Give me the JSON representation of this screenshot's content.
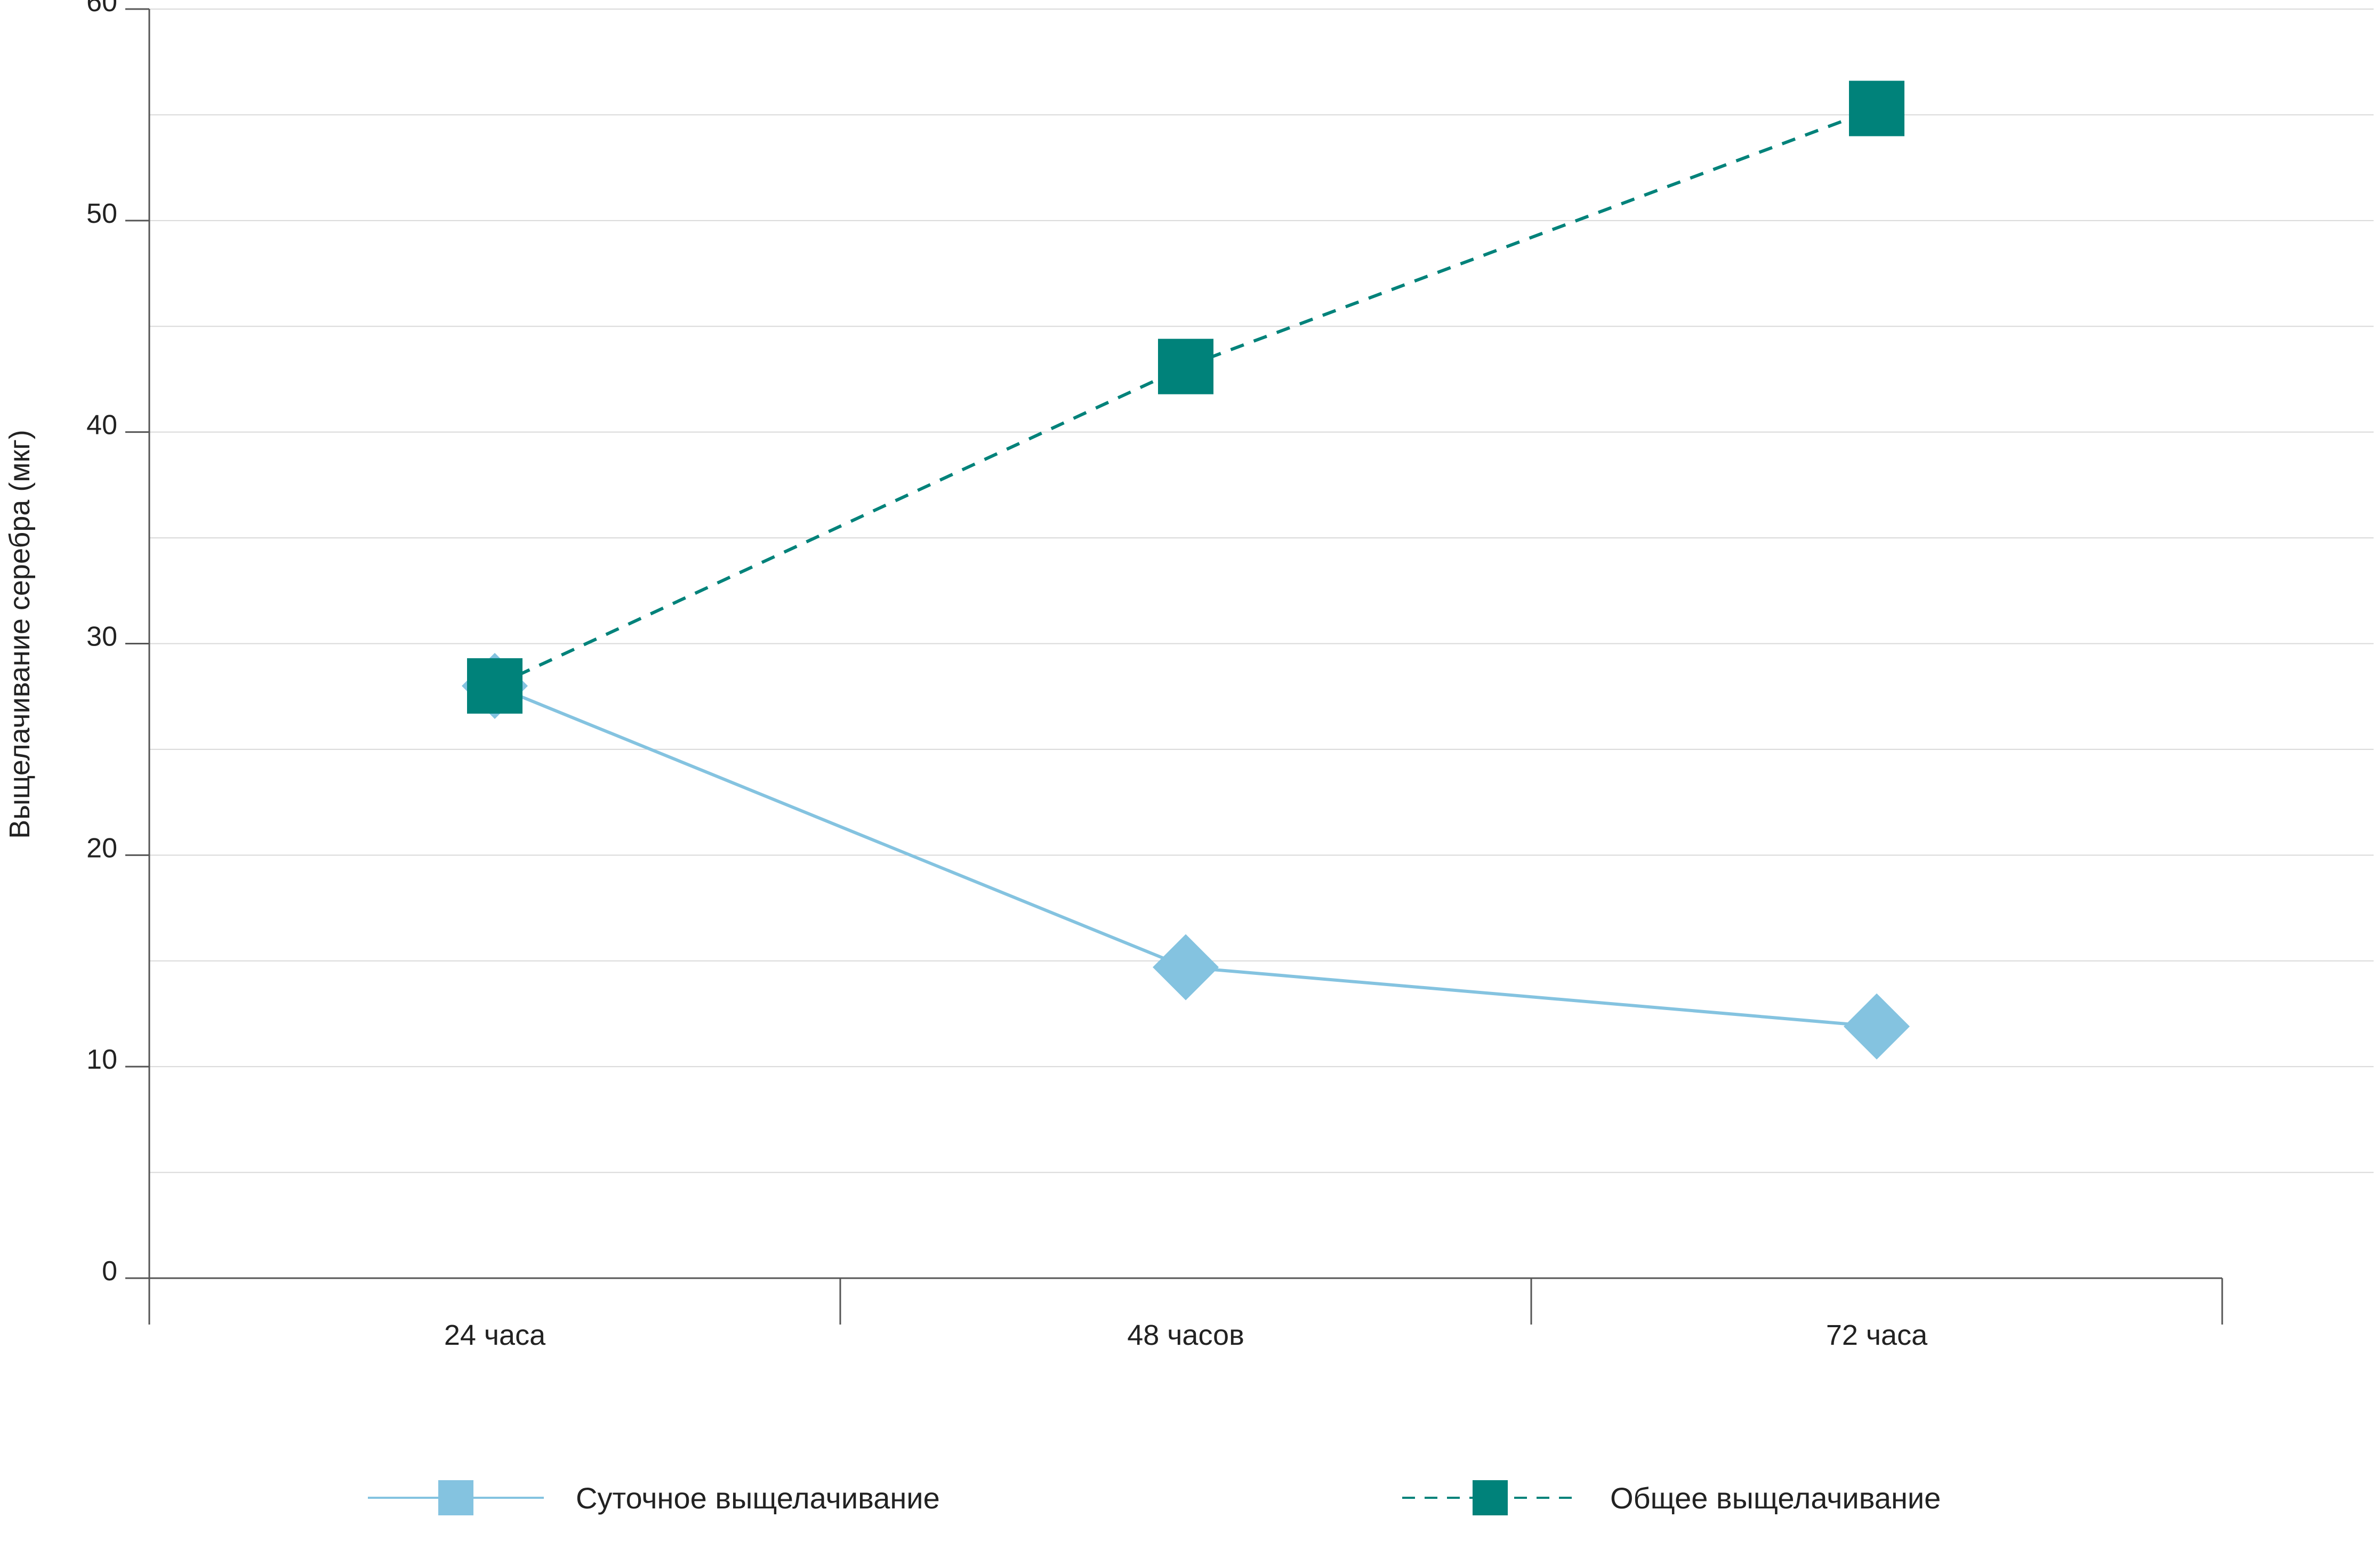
{
  "chart_data": {
    "type": "line",
    "ylabel": "Выщелачивание серебра (мкг)",
    "ylim": [
      0,
      60
    ],
    "yticks": [
      "0",
      "10",
      "20",
      "30",
      "40",
      "50",
      "60"
    ],
    "categories": [
      "24 часа",
      "48 часов",
      "72 часа"
    ],
    "grid": true,
    "legend_position": "bottom",
    "series": [
      {
        "name": "Суточное выщелачивание",
        "values": [
          28,
          14.7,
          11.9
        ],
        "color": "#84c3e0",
        "line_style": "solid",
        "marker": "diamond"
      },
      {
        "name": "Общее выщелачивание",
        "values": [
          28,
          43.1,
          55.3
        ],
        "color": "#00827a",
        "line_style": "dashed",
        "marker": "square"
      }
    ]
  }
}
